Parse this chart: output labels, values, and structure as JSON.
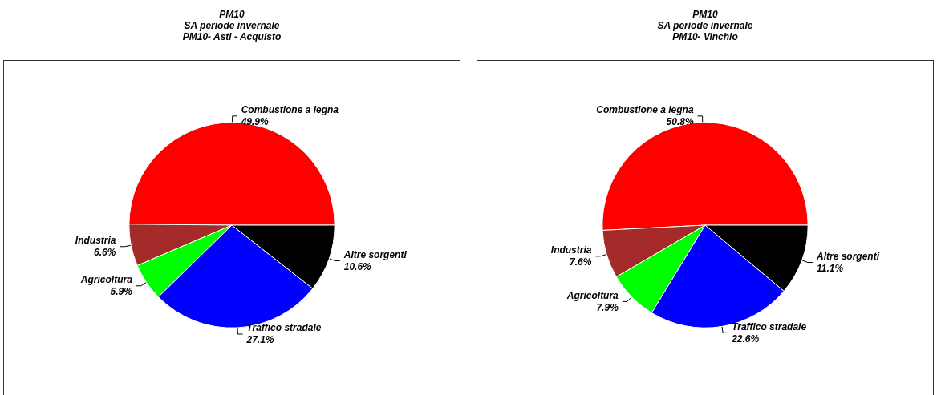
{
  "chart_data": [
    {
      "type": "pie",
      "title": "PM10\nSA periode invernale\nPM10- Asti - Acquisto",
      "categories": [
        "Combustione a legna",
        "Industria",
        "Agricoltura",
        "Traffico stradale",
        "Altre sorgenti"
      ],
      "values": [
        49.9,
        6.6,
        5.9,
        27.1,
        10.6
      ],
      "value_labels": [
        "49.9%",
        "6.6%",
        "5.9%",
        "27.1%",
        "10.6%"
      ],
      "colors": [
        "#ff0000",
        "#a52a2a",
        "#00ff00",
        "#0000ff",
        "#000000"
      ],
      "legend": false
    },
    {
      "type": "pie",
      "title": "PM10\nSA periode invernale\nPM10- Vinchio",
      "categories": [
        "Combustione a legna",
        "Industria",
        "Agricoltura",
        "Traffico stradale",
        "Altre sorgenti"
      ],
      "values": [
        50.8,
        7.6,
        7.9,
        22.6,
        11.1
      ],
      "value_labels": [
        "50.8%",
        "7.6%",
        "7.9%",
        "22.6%",
        "11.1%"
      ],
      "colors": [
        "#ff0000",
        "#a52a2a",
        "#00ff00",
        "#0000ff",
        "#000000"
      ],
      "legend": false
    }
  ]
}
